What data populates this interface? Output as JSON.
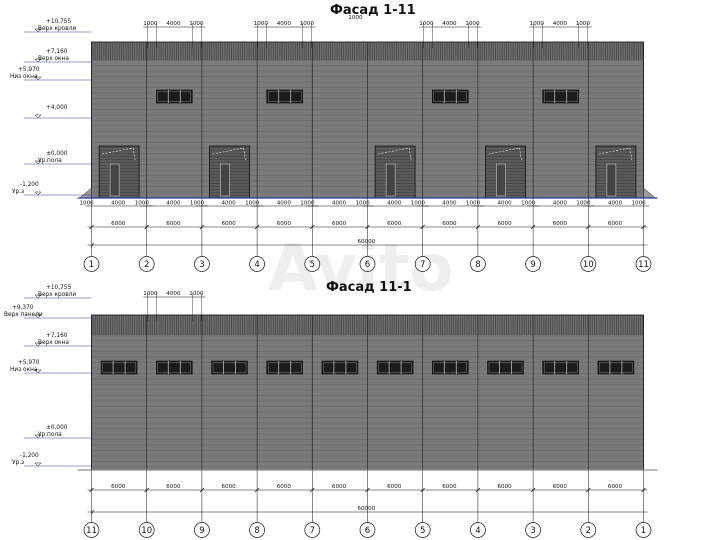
{
  "watermark": "Avito",
  "facade_top": {
    "title": "Фасад 1-11",
    "axes": [
      "1",
      "2",
      "3",
      "4",
      "5",
      "6",
      "7",
      "8",
      "9",
      "10",
      "11"
    ],
    "levels": [
      {
        "value": "+10,755",
        "label": "Верх кровли"
      },
      {
        "value": "+7,160",
        "label": "Верх окна"
      },
      {
        "value": "+5,970",
        "label": "Низ окна"
      },
      {
        "value": "+4,000",
        "label": ""
      },
      {
        "value": "±0,000",
        "label": "Ур.пола"
      },
      {
        "value": "-1,200",
        "label": "Ур.з"
      }
    ],
    "top_dims": [
      "1000",
      "4000",
      "1000"
    ],
    "mid_dim": "1000",
    "bay_dim": "6000",
    "total_dim": "60000"
  },
  "facade_bottom": {
    "title": "Фасад 11-1",
    "axes": [
      "11",
      "10",
      "9",
      "8",
      "7",
      "6",
      "5",
      "4",
      "3",
      "2",
      "1"
    ],
    "levels": [
      {
        "value": "+10,755",
        "label": "Верх кровли"
      },
      {
        "value": "+9,370",
        "label": "Верх панели"
      },
      {
        "value": "+7,160",
        "label": "Верх окна"
      },
      {
        "value": "+5,970",
        "label": "Низ окна"
      },
      {
        "value": "±0,000",
        "label": "Ур.пола"
      },
      {
        "value": "-1,200",
        "label": "Ур.з"
      }
    ],
    "top_dims": [
      "1000",
      "4000",
      "1000"
    ],
    "bay_dim": "6000",
    "total_dim": "60000"
  }
}
